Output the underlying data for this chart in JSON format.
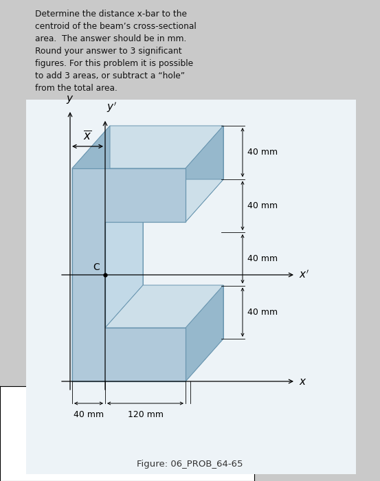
{
  "bg_color": "#c9c9c9",
  "text_box_bg": "#dde8f0",
  "title_text": "Determine the distance x-bar to the\ncentroid of the beam’s cross-sectional\narea.  The answer should be in mm.\nRound your answer to 3 significant\nfigures. For this problem it is possible\nto add 3 areas, or subtract a “hole”\nfrom the total area.",
  "figure_label": "Figure: 06_PROB_64-65",
  "dim_40mm_labels": [
    "40 mm",
    "40 mm",
    "40 mm",
    "40 mm"
  ],
  "dim_120mm": "120 mm",
  "dim_40mm_bottom": "40 mm",
  "draw_bg": "#edf3f7",
  "face_front": "#b0c9da",
  "face_top": "#cddfe9",
  "face_side": "#96b8cc",
  "face_back": "#88aec5",
  "face_inner": "#c2d9e7",
  "edge_color": "#6a96b0"
}
